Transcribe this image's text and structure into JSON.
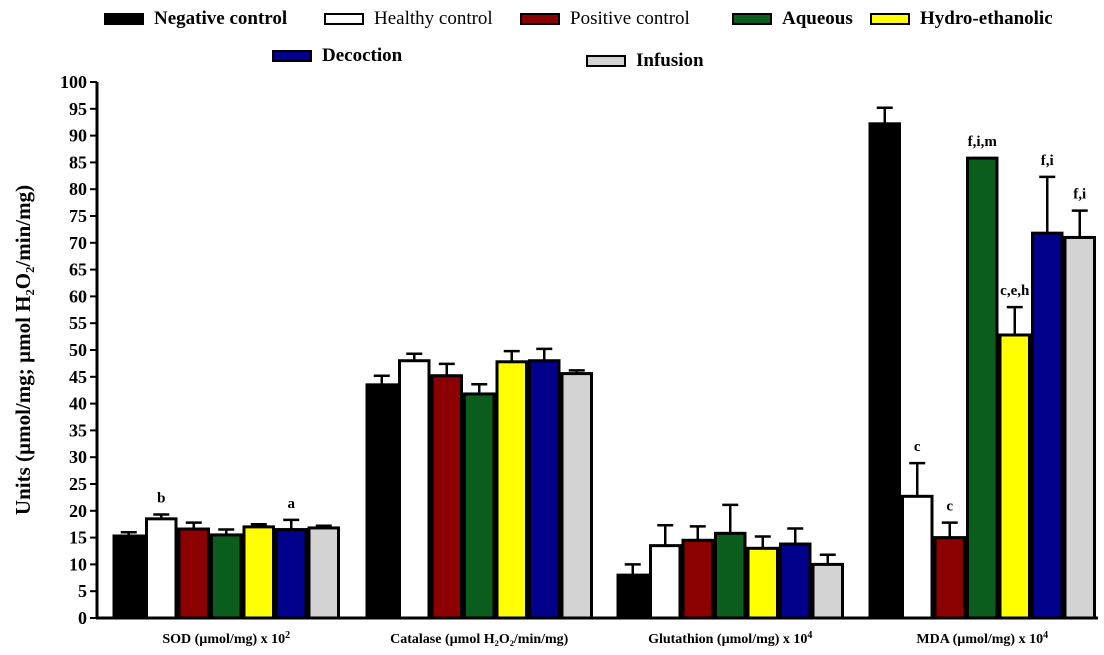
{
  "chart_data": {
    "type": "bar",
    "ylabel": "Units (µmol/mg; µmol H₂O₂/min/mg)",
    "ylim": [
      0,
      100
    ],
    "ytick_step": 5,
    "grid": false,
    "legend_position": "top",
    "categories": [
      {
        "label": "SOD (µmol/mg) x 10",
        "sup": "2"
      },
      {
        "label": "Catalase (µmol H₂O₂/min/mg)",
        "sup": ""
      },
      {
        "label": "Glutathion (µmol/mg) x 10",
        "sup": "4"
      },
      {
        "label": "MDA (µmol/mg) x 10",
        "sup": "4"
      }
    ],
    "series": [
      {
        "name": "Negative control",
        "color": "#000000",
        "values": [
          15.3,
          43.5,
          8.0,
          92.2
        ],
        "errors": [
          0.7,
          1.7,
          2.0,
          3.0
        ],
        "annotations": [
          "",
          "",
          "",
          ""
        ]
      },
      {
        "name": "Healthy control",
        "color": "#ffffff",
        "values": [
          18.5,
          48.0,
          13.5,
          22.7
        ],
        "errors": [
          0.8,
          1.3,
          3.8,
          6.2
        ],
        "annotations": [
          "b",
          "",
          "",
          "c"
        ]
      },
      {
        "name": "Positive control",
        "color": "#8b0000",
        "values": [
          16.6,
          45.2,
          14.5,
          15.0
        ],
        "errors": [
          1.2,
          2.2,
          2.6,
          2.8
        ],
        "annotations": [
          "",
          "",
          "",
          "c"
        ]
      },
      {
        "name": "Aqueous",
        "color": "#0b5d1e",
        "values": [
          15.5,
          41.8,
          15.8,
          85.8
        ],
        "errors": [
          1.0,
          1.8,
          5.3,
          0.0
        ],
        "annotations": [
          "",
          "",
          "",
          "f,i,m"
        ]
      },
      {
        "name": "Hydro-ethanolic",
        "color": "#ffff00",
        "values": [
          17.0,
          47.8,
          13.0,
          52.8
        ],
        "errors": [
          0.5,
          2.0,
          2.2,
          5.2
        ],
        "annotations": [
          "",
          "",
          "",
          "c,e,h"
        ]
      },
      {
        "name": "Decoction",
        "color": "#00008b",
        "values": [
          16.5,
          48.0,
          13.8,
          71.8
        ],
        "errors": [
          1.8,
          2.2,
          2.9,
          10.5
        ],
        "annotations": [
          "a",
          "",
          "",
          "f,i"
        ]
      },
      {
        "name": "Infusion",
        "color": "#d3d3d3",
        "values": [
          16.8,
          45.6,
          10.0,
          71.0
        ],
        "errors": [
          0.4,
          0.6,
          1.8,
          5.0
        ],
        "annotations": [
          "",
          "",
          "",
          "f,i"
        ]
      }
    ]
  }
}
